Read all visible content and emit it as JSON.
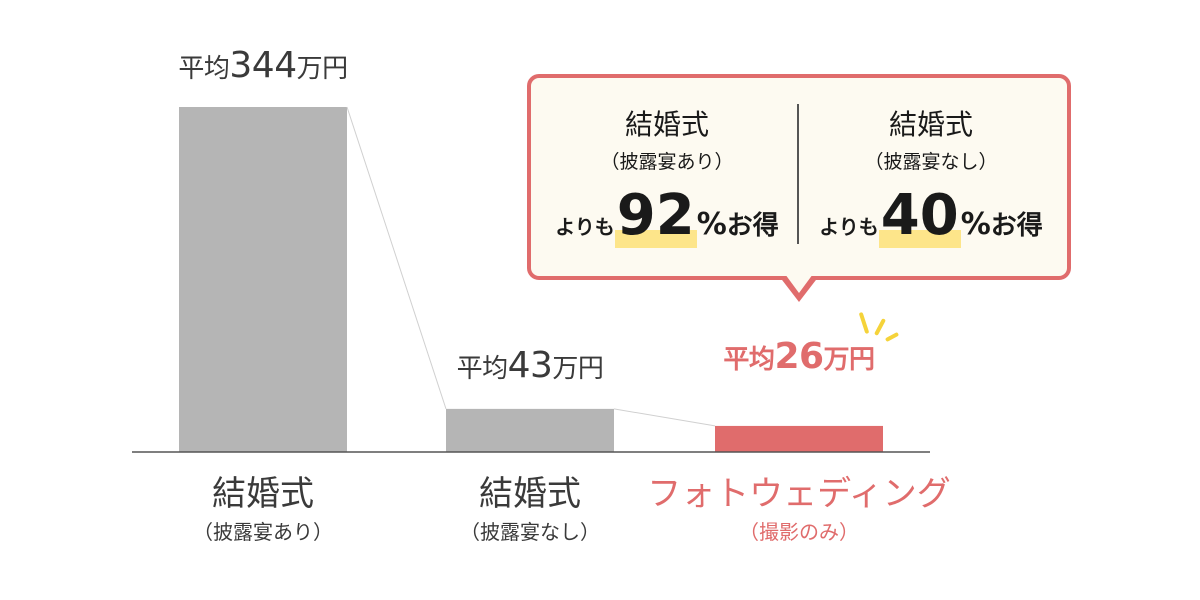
{
  "chart_data": {
    "type": "bar",
    "categories": [
      "結婚式（披露宴あり）",
      "結婚式（披露宴なし）",
      "フォトウェディング（撮影のみ）"
    ],
    "values": [
      344,
      43,
      26
    ],
    "unit": "万円",
    "ylim": [
      0,
      344
    ],
    "grid": false,
    "connector_lines": true,
    "bar_colors": [
      "#b5b5b5",
      "#b5b5b5",
      "#e06c6c"
    ]
  },
  "bars": [
    {
      "value_prefix": "平均",
      "value_number": "344",
      "value_suffix": "万円",
      "label_main": "結婚式",
      "label_sub": "（披露宴あり）",
      "highlight": false
    },
    {
      "value_prefix": "平均",
      "value_number": "43",
      "value_suffix": "万円",
      "label_main": "結婚式",
      "label_sub": "（披露宴なし）",
      "highlight": false
    },
    {
      "value_prefix": "平均",
      "value_number": "26",
      "value_suffix": "万円",
      "label_main": "フォトウェディング",
      "label_sub": "（撮影のみ）",
      "highlight": true
    }
  ],
  "callout": {
    "left": {
      "title": "結婚式",
      "subtitle": "（披露宴あり）",
      "prefix": "よりも",
      "number": "92",
      "percent": "%",
      "suffix": "お得"
    },
    "right": {
      "title": "結婚式",
      "subtitle": "（披露宴なし）",
      "prefix": "よりも",
      "number": "40",
      "percent": "%",
      "suffix": "お得"
    }
  },
  "colors": {
    "bar_gray": "#b5b5b5",
    "accent": "#e06c6c",
    "highlight_marker": "#fde58a",
    "callout_bg": "#fdfaf1",
    "sparkle": "#f5d33a"
  }
}
